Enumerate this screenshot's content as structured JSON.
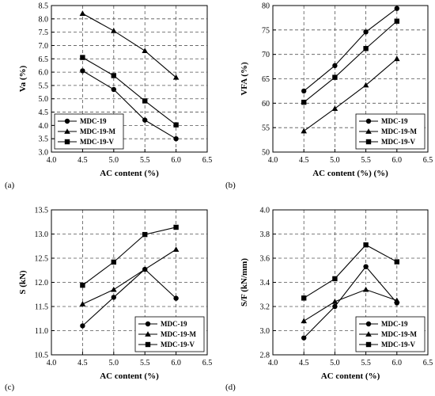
{
  "chart_data": [
    {
      "panel_label": "(a)",
      "type": "line",
      "xlabel": "AC content (%)",
      "ylabel": "Va (%)",
      "xlim": [
        4.0,
        6.5
      ],
      "ylim": [
        3.0,
        8.5
      ],
      "xticks": [
        "4.0",
        "4.5",
        "5.0",
        "5.5",
        "6.0",
        "6.5"
      ],
      "yticks": [
        "3.0",
        "3.5",
        "4.0",
        "4.5",
        "5.0",
        "5.5",
        "6.0",
        "6.5",
        "7.0",
        "7.5",
        "8.0",
        "8.5"
      ],
      "grid": true,
      "legend_position": "bottom-left",
      "x": [
        4.5,
        5.0,
        5.5,
        6.0
      ],
      "series": [
        {
          "name": "MDC-19",
          "marker": "circle",
          "values": [
            6.05,
            5.35,
            4.2,
            3.5
          ]
        },
        {
          "name": "MDC-19-M",
          "marker": "triangle",
          "values": [
            8.2,
            7.55,
            6.8,
            5.8
          ]
        },
        {
          "name": "MDC-19-V",
          "marker": "square",
          "values": [
            6.55,
            5.87,
            4.92,
            4.02
          ]
        }
      ]
    },
    {
      "panel_label": "(b)",
      "type": "line",
      "xlabel": "AC content (%) (%)",
      "ylabel": "VFA (%)",
      "xlim": [
        4.0,
        6.5
      ],
      "ylim": [
        50,
        80
      ],
      "xticks": [
        "4.0",
        "4.5",
        "5.0",
        "5.5",
        "6.0",
        "6.5"
      ],
      "yticks": [
        "50",
        "55",
        "60",
        "65",
        "70",
        "75",
        "80"
      ],
      "grid": true,
      "legend_position": "bottom-right",
      "x": [
        4.5,
        5.0,
        5.5,
        6.0
      ],
      "series": [
        {
          "name": "MDC-19",
          "marker": "circle",
          "values": [
            62.5,
            67.7,
            74.6,
            79.4
          ]
        },
        {
          "name": "MDC-19-M",
          "marker": "triangle",
          "values": [
            54.3,
            58.9,
            63.7,
            69.1
          ]
        },
        {
          "name": "MDC-19-V",
          "marker": "square",
          "values": [
            60.2,
            65.3,
            71.2,
            76.8
          ]
        }
      ]
    },
    {
      "panel_label": "(c)",
      "type": "line",
      "xlabel": "AC content (%)",
      "ylabel": "S (kN)",
      "xlim": [
        4.0,
        6.5
      ],
      "ylim": [
        10.5,
        13.5
      ],
      "xticks": [
        "4.0",
        "4.5",
        "5.0",
        "5.5",
        "6.0",
        "6.5"
      ],
      "yticks": [
        "10.5",
        "11.0",
        "11.5",
        "12.0",
        "12.5",
        "13.0",
        "13.5"
      ],
      "grid": true,
      "legend_position": "bottom-right",
      "x": [
        4.5,
        5.0,
        5.5,
        6.0
      ],
      "series": [
        {
          "name": "MDC-19",
          "marker": "circle",
          "values": [
            11.1,
            11.69,
            12.27,
            11.67
          ]
        },
        {
          "name": "MDC-19-M",
          "marker": "triangle",
          "values": [
            11.55,
            11.85,
            12.27,
            12.68
          ]
        },
        {
          "name": "MDC-19-V",
          "marker": "square",
          "values": [
            11.94,
            12.42,
            12.99,
            13.14
          ]
        }
      ]
    },
    {
      "panel_label": "(d)",
      "type": "line",
      "xlabel": "AC content (%)",
      "ylabel": "S/F (kN/mm)",
      "xlim": [
        4.0,
        6.5
      ],
      "ylim": [
        2.8,
        4.0
      ],
      "xticks": [
        "4.0",
        "4.5",
        "5.0",
        "5.5",
        "6.0",
        "6.5"
      ],
      "yticks": [
        "2.8",
        "3.0",
        "3.2",
        "3.4",
        "3.6",
        "3.8",
        "4.0"
      ],
      "grid": true,
      "legend_position": "bottom-right",
      "x": [
        4.5,
        5.0,
        5.5,
        6.0
      ],
      "series": [
        {
          "name": "MDC-19",
          "marker": "circle",
          "values": [
            2.94,
            3.2,
            3.53,
            3.23
          ]
        },
        {
          "name": "MDC-19-M",
          "marker": "triangle",
          "values": [
            3.08,
            3.24,
            3.34,
            3.25
          ]
        },
        {
          "name": "MDC-19-V",
          "marker": "square",
          "values": [
            3.27,
            3.43,
            3.71,
            3.57
          ]
        }
      ]
    }
  ]
}
